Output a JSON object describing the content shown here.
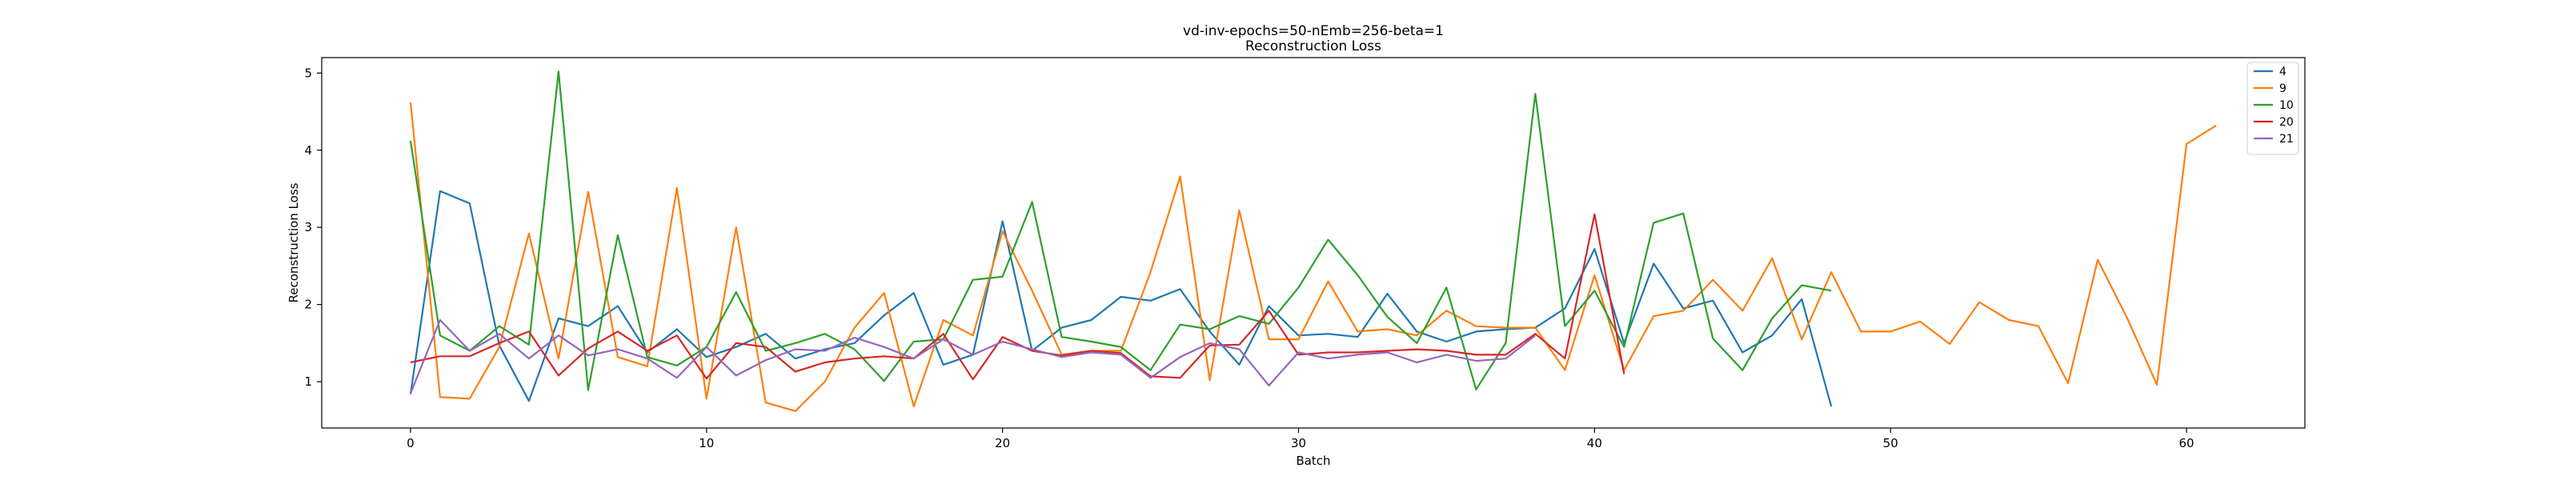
{
  "chart_data": {
    "type": "line",
    "title": "vd-inv-epochs=50-nEmb=256-beta=1",
    "subtitle": "Reconstruction Loss",
    "xlabel": "Batch",
    "ylabel": "Reconstruction Loss",
    "xlim": [
      -3,
      64
    ],
    "ylim": [
      0.4,
      5.2
    ],
    "xticks": [
      0,
      10,
      20,
      30,
      40,
      50,
      60
    ],
    "yticks": [
      1,
      2,
      3,
      4,
      5
    ],
    "grid": false,
    "legend_position": "top-right",
    "series": [
      {
        "name": "4",
        "color": "#1f77b4",
        "x": [
          0,
          1,
          2,
          3,
          4,
          5,
          6,
          7,
          8,
          9,
          10,
          11,
          12,
          13,
          14,
          15,
          16,
          17,
          18,
          19,
          20,
          21,
          22,
          23,
          24,
          25,
          26,
          27,
          28,
          29,
          30,
          31,
          32,
          33,
          34,
          35,
          36,
          37,
          38,
          39,
          40,
          41,
          42,
          43,
          44,
          45,
          46,
          47,
          48
        ],
        "y": [
          0.84,
          3.47,
          3.31,
          1.47,
          0.75,
          1.82,
          1.72,
          1.98,
          1.38,
          1.68,
          1.32,
          1.45,
          1.62,
          1.3,
          1.42,
          1.5,
          1.86,
          2.15,
          1.22,
          1.35,
          3.08,
          1.4,
          1.7,
          1.8,
          2.1,
          2.05,
          2.2,
          1.65,
          1.22,
          1.98,
          1.6,
          1.62,
          1.58,
          2.14,
          1.65,
          1.52,
          1.65,
          1.68,
          1.7,
          1.95,
          2.72,
          1.5,
          2.53,
          1.95,
          2.05,
          1.38,
          1.6,
          2.07,
          0.68
        ]
      },
      {
        "name": "9",
        "color": "#ff7f0e",
        "x": [
          0,
          1,
          2,
          3,
          4,
          5,
          6,
          7,
          8,
          9,
          10,
          11,
          12,
          13,
          14,
          15,
          16,
          17,
          18,
          19,
          20,
          21,
          22,
          23,
          24,
          25,
          26,
          27,
          28,
          29,
          30,
          31,
          32,
          33,
          34,
          35,
          36,
          37,
          38,
          39,
          40,
          41,
          42,
          43,
          44,
          45,
          46,
          47,
          48,
          49,
          50,
          51,
          52,
          53,
          54,
          55,
          56,
          57,
          58,
          59,
          60,
          61
        ],
        "y": [
          4.62,
          0.8,
          0.78,
          1.45,
          2.92,
          1.3,
          3.46,
          1.32,
          1.2,
          3.51,
          0.78,
          3.0,
          0.73,
          0.62,
          1.0,
          1.7,
          2.15,
          0.68,
          1.8,
          1.6,
          2.95,
          2.18,
          1.35,
          1.4,
          1.4,
          2.42,
          3.66,
          1.02,
          3.22,
          1.55,
          1.55,
          2.3,
          1.65,
          1.68,
          1.6,
          1.92,
          1.72,
          1.7,
          1.7,
          1.15,
          2.38,
          1.15,
          1.85,
          1.92,
          2.32,
          1.92,
          2.6,
          1.55,
          2.42,
          1.65,
          1.65,
          1.78,
          1.49,
          2.03,
          1.8,
          1.72,
          0.98,
          2.58,
          1.82,
          0.96,
          4.08,
          4.32
        ]
      },
      {
        "name": "10",
        "color": "#2ca02c",
        "x": [
          0,
          1,
          2,
          3,
          4,
          5,
          6,
          7,
          8,
          9,
          10,
          11,
          12,
          13,
          14,
          15,
          16,
          17,
          18,
          19,
          20,
          21,
          22,
          23,
          24,
          25,
          26,
          27,
          28,
          29,
          30,
          31,
          32,
          33,
          34,
          35,
          36,
          37,
          38,
          39,
          40,
          41,
          42,
          43,
          44,
          45,
          46,
          47,
          48
        ],
        "y": [
          4.12,
          1.6,
          1.4,
          1.72,
          1.48,
          5.02,
          0.89,
          2.9,
          1.32,
          1.21,
          1.45,
          2.16,
          1.4,
          1.5,
          1.62,
          1.42,
          1.01,
          1.52,
          1.55,
          2.32,
          2.36,
          3.33,
          1.58,
          1.52,
          1.45,
          1.15,
          1.74,
          1.68,
          1.85,
          1.75,
          2.22,
          2.84,
          2.38,
          1.84,
          1.5,
          2.22,
          0.9,
          1.5,
          4.73,
          1.72,
          2.18,
          1.45,
          3.06,
          3.18,
          1.56,
          1.15,
          1.82,
          2.25,
          2.18
        ]
      },
      {
        "name": "20",
        "color": "#d62728",
        "x": [
          0,
          1,
          2,
          3,
          4,
          5,
          6,
          7,
          8,
          9,
          10,
          11,
          12,
          13,
          14,
          15,
          16,
          17,
          18,
          19,
          20,
          21,
          22,
          23,
          24,
          25,
          26,
          27,
          28,
          29,
          30,
          31,
          32,
          33,
          34,
          35,
          36,
          37,
          38,
          39,
          40,
          41
        ],
        "y": [
          1.25,
          1.33,
          1.33,
          1.5,
          1.65,
          1.08,
          1.43,
          1.65,
          1.4,
          1.6,
          1.04,
          1.5,
          1.45,
          1.13,
          1.25,
          1.3,
          1.33,
          1.3,
          1.62,
          1.03,
          1.58,
          1.4,
          1.34,
          1.4,
          1.37,
          1.07,
          1.05,
          1.47,
          1.48,
          1.92,
          1.35,
          1.38,
          1.38,
          1.4,
          1.42,
          1.4,
          1.35,
          1.35,
          1.62,
          1.3,
          3.17,
          1.1
        ]
      },
      {
        "name": "21",
        "color": "#9467bd",
        "x": [
          0,
          1,
          2,
          3,
          4,
          5,
          6,
          7,
          8,
          9,
          10,
          11,
          12,
          13,
          14,
          15,
          16,
          17,
          18,
          19,
          20,
          21,
          22,
          23,
          24,
          25,
          26,
          27,
          28,
          29,
          30,
          31,
          32,
          33,
          34,
          35,
          36,
          37,
          38
        ],
        "y": [
          0.85,
          1.8,
          1.4,
          1.62,
          1.3,
          1.6,
          1.34,
          1.42,
          1.3,
          1.05,
          1.45,
          1.08,
          1.28,
          1.42,
          1.4,
          1.57,
          1.45,
          1.3,
          1.55,
          1.35,
          1.52,
          1.42,
          1.32,
          1.38,
          1.35,
          1.05,
          1.32,
          1.5,
          1.42,
          0.95,
          1.38,
          1.3,
          1.35,
          1.38,
          1.25,
          1.35,
          1.27,
          1.3,
          1.6
        ]
      }
    ]
  }
}
